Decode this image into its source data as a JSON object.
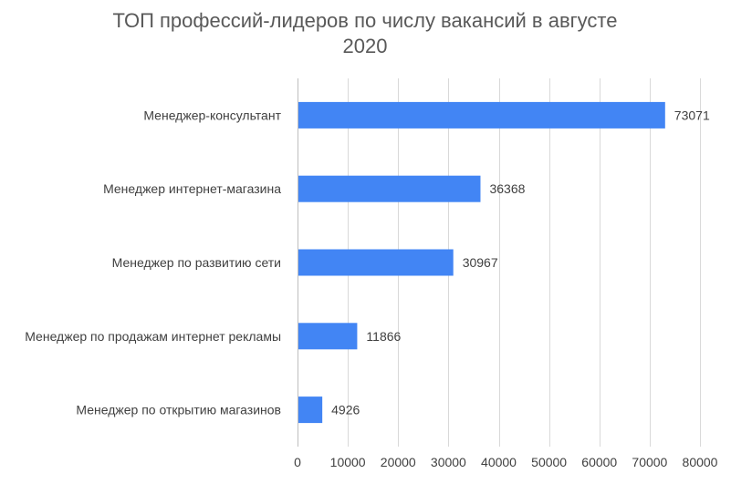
{
  "chart_data": {
    "type": "bar",
    "orientation": "horizontal",
    "title_line1": "ТОП профессий-лидеров по числу вакансий в августе",
    "title_line2": "2020",
    "categories": [
      "Менеджер-консультант",
      "Менеджер интернет-магазина",
      "Менеджер по развитию сети",
      "Менеджер по продажам интернет рекламы",
      "Менеджер по открытию магазинов"
    ],
    "values": [
      73071,
      36368,
      30967,
      11866,
      4926
    ],
    "data_labels": [
      "73071",
      "36368",
      "30967",
      "11866",
      "4926"
    ],
    "x_ticks": [
      "0",
      "10000",
      "20000",
      "30000",
      "40000",
      "50000",
      "60000",
      "70000",
      "80000"
    ],
    "xlim": [
      0,
      80000
    ],
    "grid": true,
    "legend": "none",
    "bar_color": "#4285f4"
  }
}
